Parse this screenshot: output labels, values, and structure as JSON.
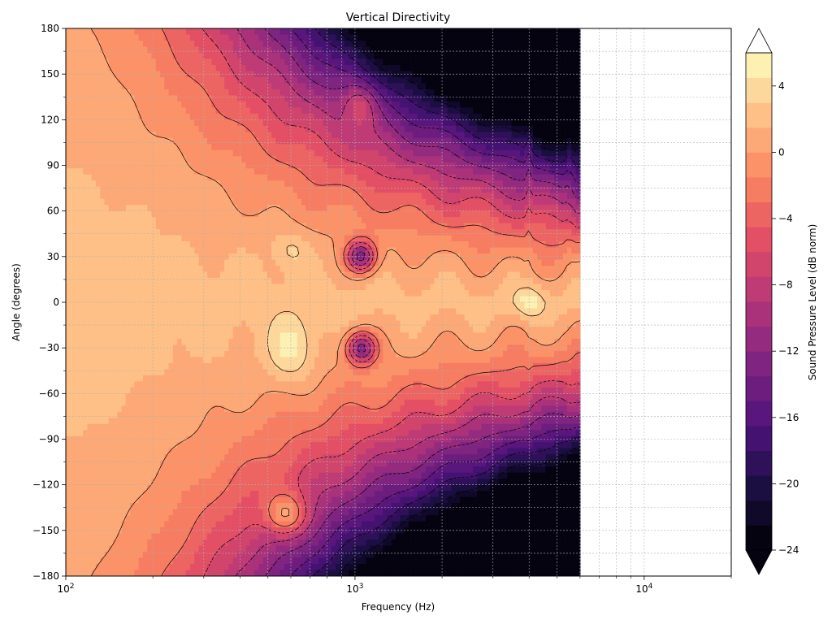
{
  "chart_data": {
    "type": "heatmap",
    "title": "Vertical Directivity",
    "xlabel": "Frequency (Hz)",
    "ylabel": "Angle (degrees)",
    "colorbar_label": "Sound Pressure Level (dB norm)",
    "x_scale": "log",
    "xlim": [
      100,
      20000
    ],
    "x_data_range": [
      100,
      6000
    ],
    "x_tick_labels": [
      {
        "value": 100,
        "base": "10",
        "exp": "2"
      },
      {
        "value": 1000,
        "base": "10",
        "exp": "3"
      },
      {
        "value": 10000,
        "base": "10",
        "exp": "4"
      }
    ],
    "ylim": [
      -180,
      180
    ],
    "y_ticks": [
      180,
      150,
      120,
      90,
      60,
      30,
      0,
      -30,
      -60,
      -90,
      -120,
      -150,
      -180
    ],
    "y_tick_labels": [
      "180",
      "150",
      "120",
      "90",
      "60",
      "30",
      "0",
      "−30",
      "−60",
      "−90",
      "−120",
      "−150",
      "−180"
    ],
    "colorbar": {
      "vmin": -24,
      "vmax": 6,
      "levels_step": 1.5,
      "extend": "both",
      "ticks": [
        4,
        0,
        -4,
        -8,
        -12,
        -16,
        -20,
        -24
      ],
      "tick_labels": [
        "4",
        "0",
        "−4",
        "−8",
        "−12",
        "−16",
        "−20",
        "−24"
      ]
    },
    "colormap": "magma",
    "grid": true,
    "contour_lines": {
      "solid": "level >= -3 dB",
      "dashed": "level < -3 dB",
      "color": "#000000"
    },
    "features": [
      {
        "freq": 600,
        "angle": -32,
        "level": 4,
        "note": "high lobe"
      },
      {
        "freq": 1050,
        "angle": 30,
        "level": -18,
        "note": "deep null"
      },
      {
        "freq": 1050,
        "angle": -30,
        "level": -18,
        "note": "deep null"
      },
      {
        "freq": 580,
        "angle": -140,
        "level": 0,
        "note": "rear lobe"
      },
      {
        "freq": 1050,
        "angle": 130,
        "level": -12,
        "note": "rear lobe"
      },
      {
        "freq": 4000,
        "angle": 0,
        "level": 6,
        "note": "on-axis high"
      }
    ]
  }
}
